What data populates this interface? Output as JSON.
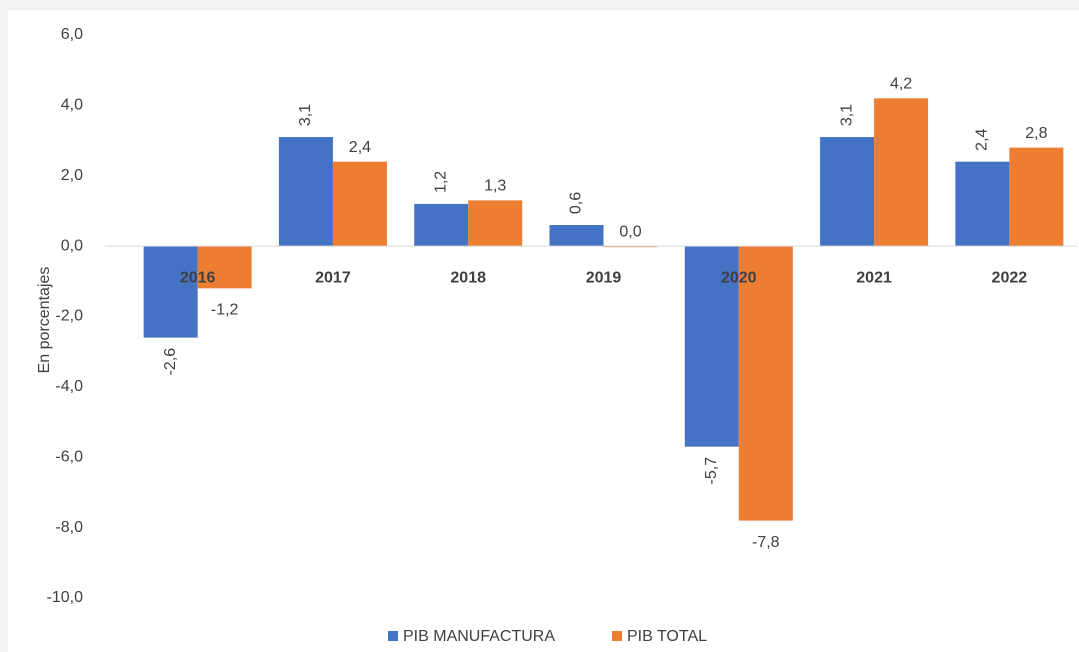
{
  "chart_data": {
    "type": "bar",
    "y_axis_label": "En porcentajes",
    "categories": [
      "2016",
      "2017",
      "2018",
      "2019",
      "2020",
      "2021",
      "2022"
    ],
    "series": [
      {
        "name": "PIB MANUFACTURA",
        "color": "#4472c4",
        "values": [
          -2.6,
          3.1,
          1.2,
          0.6,
          -5.7,
          3.1,
          2.4
        ],
        "value_labels": [
          "-2,6",
          "3,1",
          "1,2",
          "0,6",
          "-5,7",
          "3,1",
          "2,4"
        ]
      },
      {
        "name": "PIB TOTAL",
        "color": "#ed7d31",
        "values": [
          -1.2,
          2.4,
          1.3,
          0.0,
          -7.8,
          4.2,
          2.8
        ],
        "value_labels": [
          "-1,2",
          "2,4",
          "1,3",
          "0,0",
          "-7,8",
          "4,2",
          "2,8"
        ]
      }
    ],
    "ylim": [
      -10,
      6
    ],
    "yticks": [
      {
        "value": -10,
        "label": "-10,0"
      },
      {
        "value": -8,
        "label": "-8,0"
      },
      {
        "value": -6,
        "label": "-6,0"
      },
      {
        "value": -4,
        "label": "-4,0"
      },
      {
        "value": -2,
        "label": "-2,0"
      },
      {
        "value": 0,
        "label": "0,0"
      },
      {
        "value": 2,
        "label": "2,0"
      },
      {
        "value": 4,
        "label": "4,0"
      },
      {
        "value": 6,
        "label": "6,0"
      }
    ],
    "grid": false,
    "legend": "bottom"
  }
}
